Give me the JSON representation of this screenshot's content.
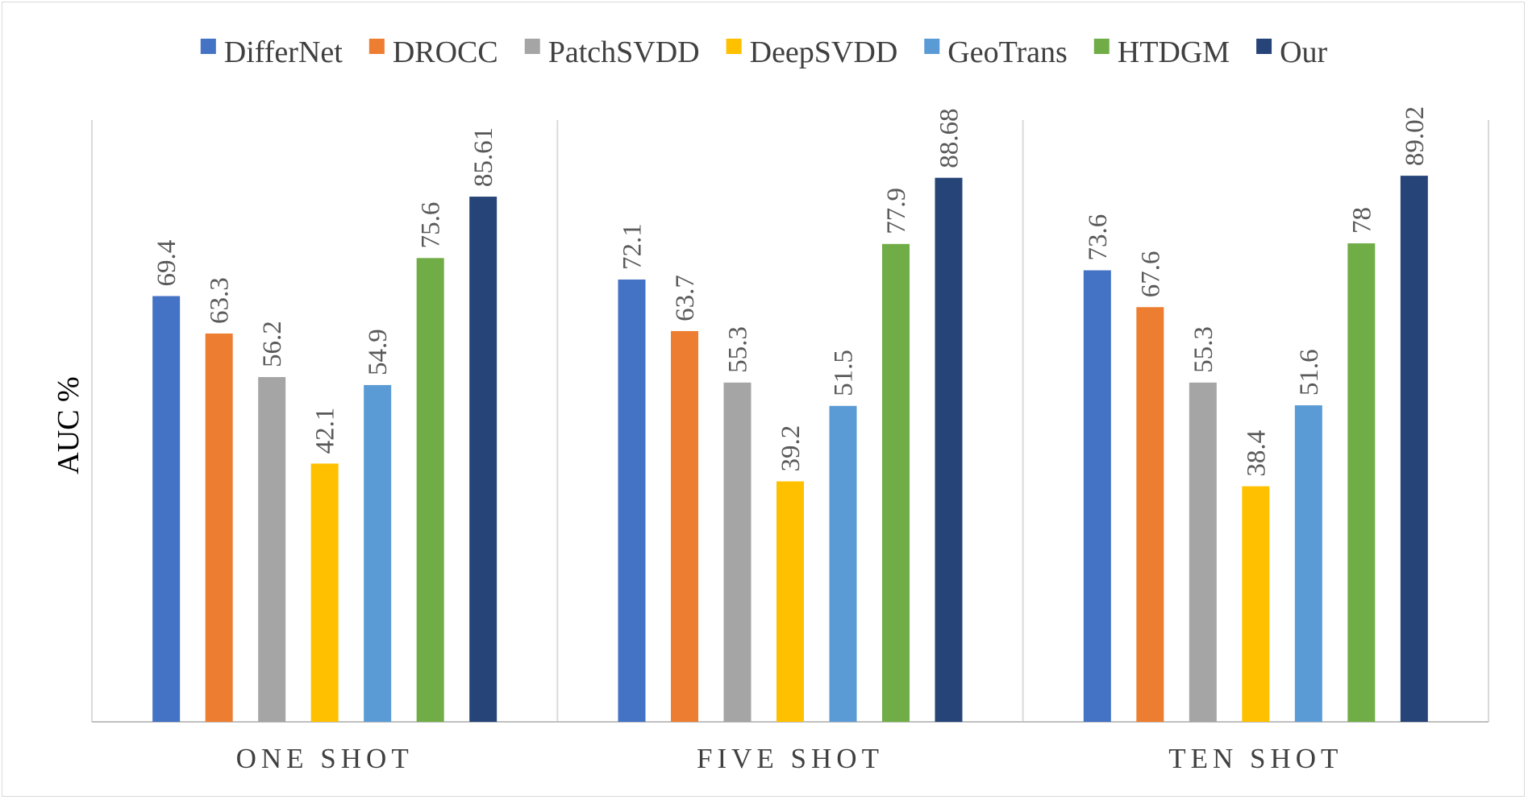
{
  "chart_data": {
    "type": "bar",
    "ylabel": "AUC %",
    "xlabel": "",
    "ylim": [
      0,
      100
    ],
    "grid": false,
    "legend_position": "top",
    "categories": [
      "ONE SHOT",
      "FIVE SHOT",
      "TEN SHOT"
    ],
    "series": [
      {
        "name": "DifferNet",
        "color": "#4472c4",
        "values": [
          69.4,
          72.1,
          73.6
        ],
        "labels": [
          "69.4",
          "72.1",
          "73.6"
        ]
      },
      {
        "name": "DROCC",
        "color": "#ed7d31",
        "values": [
          63.3,
          63.7,
          67.6
        ],
        "labels": [
          "63.3",
          "63.7",
          "67.6"
        ]
      },
      {
        "name": "PatchSVDD",
        "color": "#a5a5a5",
        "values": [
          56.2,
          55.3,
          55.3
        ],
        "labels": [
          "56.2",
          "55.3",
          "55.3"
        ]
      },
      {
        "name": "DeepSVDD",
        "color": "#ffc000",
        "values": [
          42.1,
          39.2,
          38.4
        ],
        "labels": [
          "42.1",
          "39.2",
          "38.4"
        ]
      },
      {
        "name": "GeoTrans",
        "color": "#5b9bd5",
        "values": [
          54.9,
          51.5,
          51.6
        ],
        "labels": [
          "54.9",
          "51.5",
          "51.6"
        ]
      },
      {
        "name": "HTDGM",
        "color": "#70ad47",
        "values": [
          75.6,
          77.9,
          78
        ],
        "labels": [
          "75.6",
          "77.9",
          "78"
        ]
      },
      {
        "name": "Our",
        "color": "#264478",
        "values": [
          85.61,
          88.68,
          89.02
        ],
        "labels": [
          "85.61",
          "88.68",
          "89.02"
        ]
      }
    ]
  }
}
